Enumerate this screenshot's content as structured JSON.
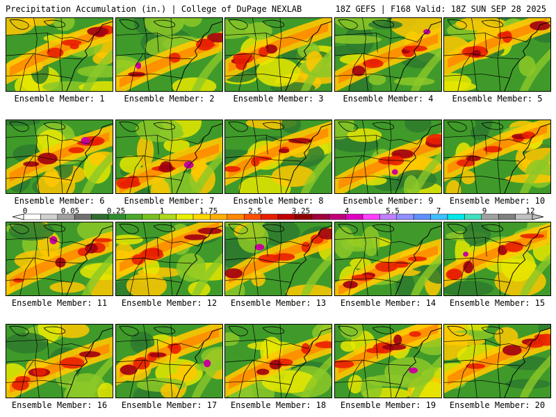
{
  "header": {
    "left": "Precipitation Accumulation (in.) | College of DuPage NEXLAB",
    "right": "18Z GEFS | F168 Valid: 18Z SUN SEP 28 2025"
  },
  "members": [
    "Ensemble Member: 1",
    "Ensemble Member: 2",
    "Ensemble Member: 3",
    "Ensemble Member: 4",
    "Ensemble Member: 5",
    "Ensemble Member: 6",
    "Ensemble Member: 7",
    "Ensemble Member: 8",
    "Ensemble Member: 9",
    "Ensemble Member: 10",
    "Ensemble Member: 11",
    "Ensemble Member: 12",
    "Ensemble Member: 13",
    "Ensemble Member: 14",
    "Ensemble Member: 15",
    "Ensemble Member: 16",
    "Ensemble Member: 17",
    "Ensemble Member: 18",
    "Ensemble Member: 19",
    "Ensemble Member: 20"
  ],
  "colorbar": {
    "ticks": [
      "0",
      "0.05",
      "0.25",
      "1",
      "1.75",
      "2.5",
      "3.25",
      "4",
      "5.5",
      "7",
      "9",
      "12"
    ],
    "colors": [
      "#ffffff",
      "#d0d0d0",
      "#a0a0a0",
      "#707070",
      "#2f6e2f",
      "#2f8f2f",
      "#4aa82a",
      "#78c020",
      "#b0d81c",
      "#e8f000",
      "#ffd800",
      "#ffb000",
      "#ff8800",
      "#ff5000",
      "#e82000",
      "#c00000",
      "#900000",
      "#a0003c",
      "#c0007a",
      "#e000c0",
      "#ff40ff",
      "#c080ff",
      "#9090ff",
      "#6090ff",
      "#40c0ff",
      "#00e8e8",
      "#40e0c0",
      "#a0a0a0",
      "#808080",
      "#c0c0c0"
    ]
  },
  "palette": {
    "green_dark": "#2e7a2e",
    "green": "#3f9a2a",
    "green_light": "#8cc828",
    "yellow": "#e8e800",
    "gold": "#ffc800",
    "orange": "#ff8c00",
    "red": "#e82000",
    "dark_red": "#a00010",
    "magenta": "#c8009a",
    "violet": "#b070f0",
    "border": "#000000"
  }
}
